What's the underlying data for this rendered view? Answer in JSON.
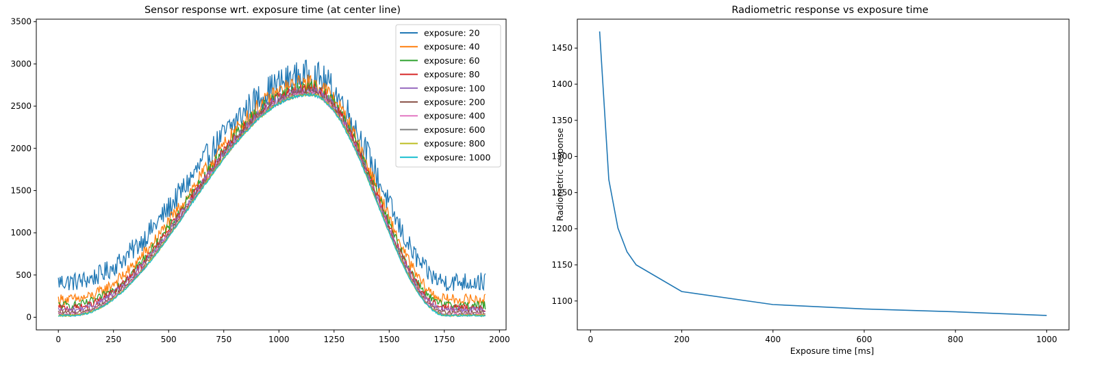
{
  "chart_data": [
    {
      "type": "line",
      "title": "Sensor response wrt. exposure time (at center line)",
      "xlabel": "",
      "ylabel": "",
      "xlim": [
        -100,
        2030
      ],
      "ylim": [
        -150,
        3530
      ],
      "xticks": [
        0,
        250,
        500,
        750,
        1000,
        1250,
        1500,
        1750,
        2000
      ],
      "yticks": [
        0,
        500,
        1000,
        1500,
        2000,
        2500,
        3000,
        3500
      ],
      "grid": false,
      "legend": "top-right",
      "x": {
        "start": 0,
        "end": 1936,
        "step": 4
      },
      "series": [
        {
          "name": "exposure: 20",
          "color": "#1f77b4",
          "baseline": 420,
          "peak": 2860,
          "noise": 190
        },
        {
          "name": "exposure: 40",
          "color": "#ff7f0e",
          "baseline": 210,
          "peak": 2770,
          "noise": 110
        },
        {
          "name": "exposure: 60",
          "color": "#2ca02c",
          "baseline": 140,
          "peak": 2720,
          "noise": 85
        },
        {
          "name": "exposure: 80",
          "color": "#d62728",
          "baseline": 110,
          "peak": 2700,
          "noise": 70
        },
        {
          "name": "exposure: 100",
          "color": "#9467bd",
          "baseline": 90,
          "peak": 2690,
          "noise": 55
        },
        {
          "name": "exposure: 200",
          "color": "#8c564b",
          "baseline": 55,
          "peak": 2670,
          "noise": 40
        },
        {
          "name": "exposure: 400",
          "color": "#e377c2",
          "baseline": 35,
          "peak": 2650,
          "noise": 30
        },
        {
          "name": "exposure: 600",
          "color": "#7f7f7f",
          "baseline": 28,
          "peak": 2645,
          "noise": 25
        },
        {
          "name": "exposure: 800",
          "color": "#bcbd22",
          "baseline": 22,
          "peak": 2640,
          "noise": 20
        },
        {
          "name": "exposure: 1000",
          "color": "#17becf",
          "baseline": 18,
          "peak": 2635,
          "noise": 18
        }
      ]
    },
    {
      "type": "line",
      "title": "Radiometric response vs exposure time",
      "xlabel": "Exposure time [ms]",
      "ylabel": "Radiometric response",
      "xlim": [
        -29,
        1049
      ],
      "ylim": [
        1060,
        1490
      ],
      "xticks": [
        0,
        200,
        400,
        600,
        800,
        1000
      ],
      "yticks": [
        1100,
        1150,
        1200,
        1250,
        1300,
        1350,
        1400,
        1450
      ],
      "grid": false,
      "legend": "none",
      "series": [
        {
          "color": "#1f77b4",
          "x": [
            20,
            40,
            60,
            80,
            100,
            200,
            400,
            600,
            800,
            1000
          ],
          "values": [
            1473,
            1268,
            1201,
            1168,
            1150,
            1113,
            1095,
            1089,
            1085,
            1080
          ]
        }
      ]
    }
  ]
}
